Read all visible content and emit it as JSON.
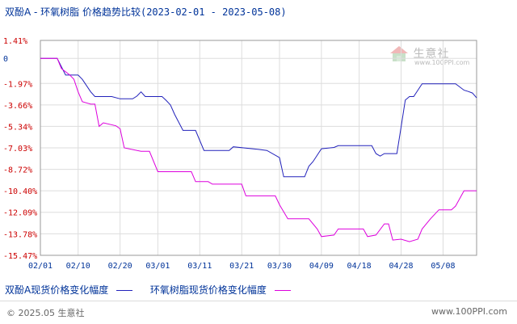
{
  "header": {
    "title": "双酚A - 环氧树脂 价格趋势比较",
    "range": "(2023-02-01 - 2023-05-08)"
  },
  "colors": {
    "series_1": "#2222bb",
    "series_2": "#dd00dd",
    "top_tick": "#cc0000",
    "neg_tick": "#cc0000",
    "zero_tick": "#003399",
    "grid": "#dddddd"
  },
  "chart_data": {
    "type": "line",
    "ylim": [
      -15.47,
      1.41
    ],
    "yticks": [
      "1.41%",
      "0",
      "-1.97%",
      "-3.66%",
      "-5.34%",
      "-7.03%",
      "-8.72%",
      "-10.40%",
      "-12.09%",
      "-13.78%",
      "-15.47%"
    ],
    "ytick_values": [
      1.41,
      0,
      -1.97,
      -3.66,
      -5.34,
      -7.03,
      -8.72,
      -10.4,
      -12.09,
      -13.78,
      -15.47
    ],
    "xticks": [
      "02/01",
      "02/10",
      "02/20",
      "03/01",
      "03/11",
      "03/21",
      "03/30",
      "04/09",
      "04/18",
      "04/28",
      "05/08"
    ],
    "xtick_days": [
      0,
      9,
      19,
      28,
      38,
      48,
      57,
      67,
      76,
      86,
      96
    ],
    "series": [
      {
        "name": "双酚A现货价格变化幅度",
        "points": [
          [
            0,
            0
          ],
          [
            4,
            0
          ],
          [
            6,
            -1.31
          ],
          [
            9,
            -1.31
          ],
          [
            10,
            -1.65
          ],
          [
            12,
            -2.63
          ],
          [
            13,
            -3.0
          ],
          [
            17,
            -3.0
          ],
          [
            19,
            -3.18
          ],
          [
            22,
            -3.18
          ],
          [
            23,
            -2.97
          ],
          [
            24,
            -2.63
          ],
          [
            25,
            -3.0
          ],
          [
            29,
            -3.0
          ],
          [
            30,
            -3.31
          ],
          [
            31,
            -3.66
          ],
          [
            32,
            -4.4
          ],
          [
            34,
            -5.66
          ],
          [
            37,
            -5.66
          ],
          [
            39,
            -7.23
          ],
          [
            45,
            -7.23
          ],
          [
            46,
            -6.95
          ],
          [
            52,
            -7.15
          ],
          [
            54,
            -7.23
          ],
          [
            57,
            -7.8
          ],
          [
            58,
            -9.3
          ],
          [
            63,
            -9.3
          ],
          [
            64,
            -8.48
          ],
          [
            65,
            -8.11
          ],
          [
            67,
            -7.1
          ],
          [
            70,
            -7.0
          ],
          [
            71,
            -6.86
          ],
          [
            79,
            -6.86
          ],
          [
            80,
            -7.48
          ],
          [
            81,
            -7.68
          ],
          [
            82,
            -7.48
          ],
          [
            85,
            -7.48
          ],
          [
            86,
            -5.4
          ],
          [
            87,
            -3.28
          ],
          [
            88,
            -3.0
          ],
          [
            89,
            -3.0
          ],
          [
            90,
            -2.5
          ],
          [
            91,
            -2.0
          ],
          [
            99,
            -2.0
          ],
          [
            101,
            -2.5
          ],
          [
            102,
            -2.6
          ],
          [
            103,
            -2.72
          ],
          [
            104,
            -3.1
          ]
        ]
      },
      {
        "name": "环氧树脂现货价格变化幅度",
        "points": [
          [
            0,
            0
          ],
          [
            4,
            0
          ],
          [
            5,
            -0.8
          ],
          [
            7,
            -1.3
          ],
          [
            8,
            -1.65
          ],
          [
            9,
            -2.63
          ],
          [
            10,
            -3.4
          ],
          [
            12,
            -3.6
          ],
          [
            13,
            -3.6
          ],
          [
            14,
            -5.34
          ],
          [
            15,
            -5.06
          ],
          [
            18,
            -5.3
          ],
          [
            19,
            -5.53
          ],
          [
            20,
            -7.03
          ],
          [
            24,
            -7.3
          ],
          [
            26,
            -7.3
          ],
          [
            28,
            -8.9
          ],
          [
            36,
            -8.9
          ],
          [
            37,
            -9.68
          ],
          [
            40,
            -9.68
          ],
          [
            41,
            -9.88
          ],
          [
            48,
            -9.88
          ],
          [
            49,
            -10.8
          ],
          [
            56,
            -10.8
          ],
          [
            57,
            -11.5
          ],
          [
            59,
            -12.6
          ],
          [
            64,
            -12.6
          ],
          [
            66,
            -13.4
          ],
          [
            67,
            -14.0
          ],
          [
            70,
            -13.88
          ],
          [
            71,
            -13.4
          ],
          [
            77,
            -13.4
          ],
          [
            78,
            -14.0
          ],
          [
            80,
            -13.88
          ],
          [
            82,
            -13.0
          ],
          [
            83,
            -13.0
          ],
          [
            84,
            -14.27
          ],
          [
            86,
            -14.2
          ],
          [
            88,
            -14.4
          ],
          [
            90,
            -14.2
          ],
          [
            91,
            -13.4
          ],
          [
            93,
            -12.6
          ],
          [
            95,
            -11.9
          ],
          [
            98,
            -11.9
          ],
          [
            99,
            -11.6
          ],
          [
            101,
            -10.4
          ],
          [
            104,
            -10.4
          ]
        ]
      }
    ]
  },
  "legend": {
    "series_1": "双酚A现货价格变化幅度",
    "series_2": "环氧树脂现货价格变化幅度"
  },
  "watermark": {
    "brand": "生意社",
    "url": "www.100PPI.com"
  },
  "footer": {
    "copyright": "© 2025.05 生意社",
    "site": "www.100PPI.com"
  }
}
